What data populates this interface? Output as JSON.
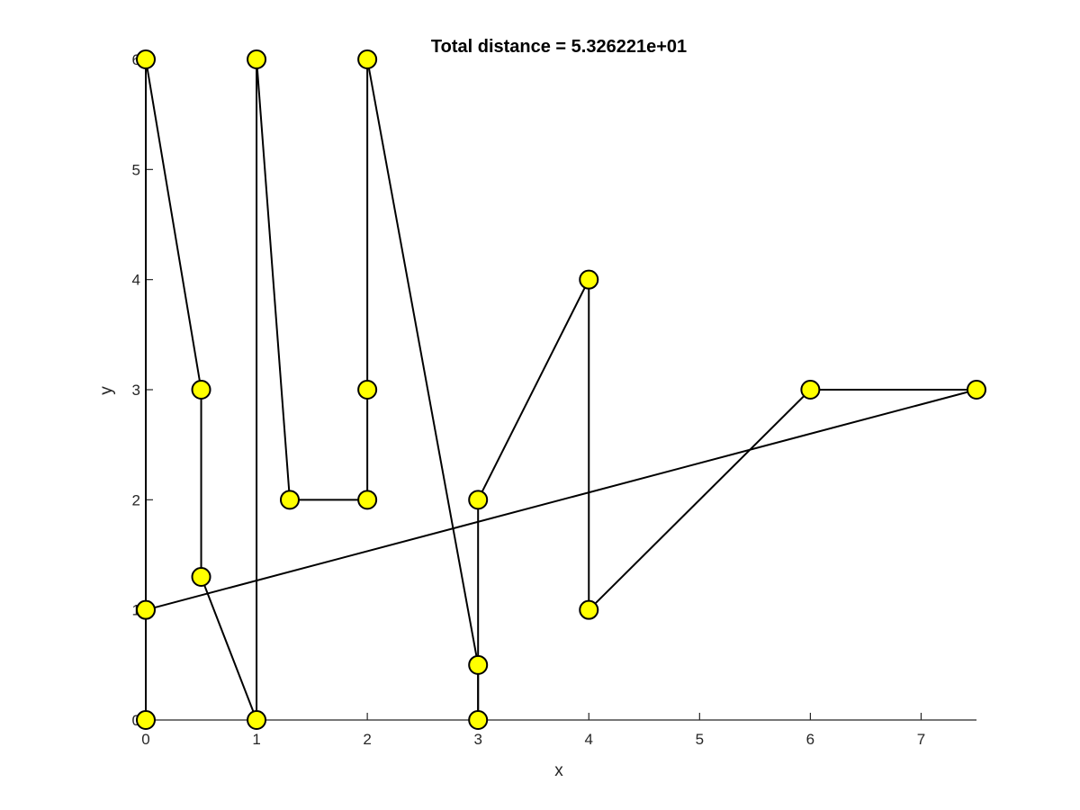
{
  "chart_data": {
    "type": "line",
    "title": "Total distance =  5.326221e+01",
    "xlabel": "x",
    "ylabel": "y",
    "xlim": [
      0,
      7.5
    ],
    "ylim": [
      0,
      6
    ],
    "xticks": [
      0,
      1,
      2,
      3,
      4,
      5,
      6,
      7
    ],
    "yticks": [
      0,
      1,
      2,
      3,
      4,
      5,
      6
    ],
    "grid": false,
    "marker_color": "#ffff00",
    "line_color": "#000000",
    "route": {
      "x": [
        0,
        0,
        0.5,
        0.5,
        1,
        1,
        1.3,
        2,
        2,
        2,
        3,
        3,
        3,
        4,
        4,
        6,
        7.5,
        6,
        4,
        4,
        3,
        3
      ],
      "y": [
        0,
        6,
        3,
        1.3,
        0,
        6,
        2,
        2,
        3,
        6,
        0.5,
        0,
        2,
        4,
        1,
        3,
        3,
        3,
        1,
        4,
        2,
        1.8
      ]
    },
    "segments": [
      [
        [
          0,
          0
        ],
        [
          0,
          6
        ]
      ],
      [
        [
          0,
          6
        ],
        [
          0.5,
          3
        ]
      ],
      [
        [
          0.5,
          3
        ],
        [
          0.5,
          1.3
        ]
      ],
      [
        [
          0.5,
          1.3
        ],
        [
          1,
          0
        ]
      ],
      [
        [
          1,
          0
        ],
        [
          1,
          6
        ]
      ],
      [
        [
          1,
          6
        ],
        [
          1.3,
          2
        ]
      ],
      [
        [
          1.3,
          2
        ],
        [
          2,
          2
        ]
      ],
      [
        [
          2,
          2
        ],
        [
          2,
          3
        ]
      ],
      [
        [
          2,
          3
        ],
        [
          2,
          6
        ]
      ],
      [
        [
          2,
          6
        ],
        [
          3,
          0.5
        ]
      ],
      [
        [
          3,
          0.5
        ],
        [
          3,
          0
        ]
      ],
      [
        [
          3,
          0
        ],
        [
          3,
          2
        ]
      ],
      [
        [
          3,
          2
        ],
        [
          4,
          4
        ]
      ],
      [
        [
          4,
          4
        ],
        [
          4,
          1
        ]
      ],
      [
        [
          4,
          1
        ],
        [
          6,
          3
        ]
      ],
      [
        [
          6,
          3
        ],
        [
          7.5,
          3
        ]
      ],
      [
        [
          7.5,
          3
        ],
        [
          0,
          1
        ]
      ],
      [
        [
          0,
          1
        ],
        [
          0,
          0
        ]
      ]
    ],
    "points": [
      [
        0,
        0
      ],
      [
        0,
        1
      ],
      [
        0,
        6
      ],
      [
        0.5,
        3
      ],
      [
        0.5,
        1.3
      ],
      [
        1,
        0
      ],
      [
        1,
        6
      ],
      [
        1.3,
        2
      ],
      [
        2,
        2
      ],
      [
        2,
        3
      ],
      [
        2,
        6
      ],
      [
        3,
        2
      ],
      [
        3,
        0.5
      ],
      [
        3,
        0
      ],
      [
        4,
        4
      ],
      [
        4,
        1
      ],
      [
        6,
        3
      ],
      [
        7.5,
        3
      ]
    ]
  }
}
